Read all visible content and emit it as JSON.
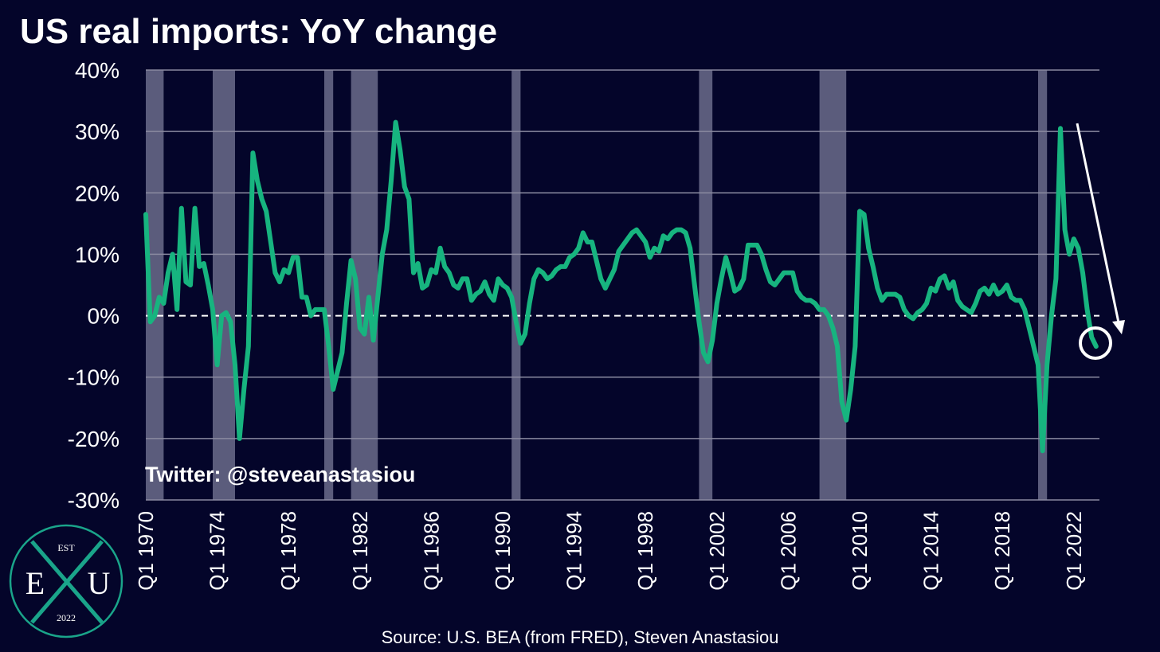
{
  "chart_data": {
    "type": "line",
    "title": "US real imports: YoY change",
    "source": "Source: U.S. BEA (from FRED), Steven Anastasiou",
    "watermark": "Twitter: @steveanastasiou",
    "logo": {
      "top": "EST",
      "left": "E",
      "right": "U",
      "bottom": "2022"
    },
    "color": "#17b47f",
    "band_color": "#5b5c7c",
    "categories": [
      "Q1 1970",
      null,
      null,
      null,
      null,
      null,
      null,
      null,
      null,
      null,
      null,
      null,
      null,
      null,
      null,
      null,
      "Q1 1974",
      null,
      null,
      null,
      null,
      null,
      null,
      null,
      null,
      null,
      null,
      null,
      null,
      null,
      null,
      null,
      "Q1 1978",
      null,
      null,
      null,
      null,
      null,
      null,
      null,
      null,
      null,
      null,
      null,
      null,
      null,
      null,
      null,
      "Q1 1982",
      null,
      null,
      null,
      null,
      null,
      null,
      null,
      null,
      null,
      null,
      null,
      null,
      null,
      null,
      null,
      "Q1 1986",
      null,
      null,
      null,
      null,
      null,
      null,
      null,
      null,
      null,
      null,
      null,
      null,
      null,
      null,
      null,
      "Q1 1990",
      null,
      null,
      null,
      null,
      null,
      null,
      null,
      null,
      null,
      null,
      null,
      null,
      null,
      null,
      null,
      "Q1 1994",
      null,
      null,
      null,
      null,
      null,
      null,
      null,
      null,
      null,
      null,
      null,
      null,
      null,
      null,
      null,
      "Q1 1998",
      null,
      null,
      null,
      null,
      null,
      null,
      null,
      null,
      null,
      null,
      null,
      null,
      null,
      null,
      null,
      "Q1 2002",
      null,
      null,
      null,
      null,
      null,
      null,
      null,
      null,
      null,
      null,
      null,
      null,
      null,
      null,
      null,
      "Q1 2006",
      null,
      null,
      null,
      null,
      null,
      null,
      null,
      null,
      null,
      null,
      null,
      null,
      null,
      null,
      null,
      "Q1 2010",
      null,
      null,
      null,
      null,
      null,
      null,
      null,
      null,
      null,
      null,
      null,
      null,
      null,
      null,
      null,
      "Q1 2014",
      null,
      null,
      null,
      null,
      null,
      null,
      null,
      null,
      null,
      null,
      null,
      null,
      null,
      null,
      null,
      "Q1 2018",
      null,
      null,
      null,
      null,
      null,
      null,
      null,
      null,
      null,
      null,
      null,
      null,
      null,
      null,
      null,
      "Q1 2022",
      null,
      null,
      null,
      null,
      null
    ],
    "values": [
      16.5,
      -1,
      0,
      3,
      2,
      7,
      10,
      1,
      17.5,
      5.5,
      5,
      17.5,
      8,
      8.5,
      5,
      1,
      -8,
      0,
      0.5,
      -1,
      -8,
      -20,
      -12,
      -5,
      26.5,
      22,
      19,
      17,
      12,
      7,
      5.5,
      7.5,
      7,
      9.5,
      9.5,
      3,
      3,
      0,
      1,
      1,
      1,
      -5,
      -12,
      -9,
      -6,
      2,
      9,
      6,
      -2,
      -3,
      3,
      -4,
      3,
      10,
      14,
      22,
      31.5,
      27,
      21,
      19,
      7,
      8.5,
      4.5,
      5,
      7.5,
      7,
      11,
      8,
      7,
      5,
      4.5,
      6,
      6,
      2.5,
      3.5,
      4,
      5.5,
      3.5,
      2.5,
      6,
      5,
      4.5,
      3,
      -1,
      -4.5,
      -3,
      2,
      6,
      7.5,
      7,
      6,
      6.5,
      7.5,
      8,
      8,
      9.5,
      10,
      11,
      13.5,
      12,
      12,
      9,
      6,
      4.5,
      6,
      7.5,
      10.5,
      11.5,
      12.5,
      13.5,
      14,
      13,
      12,
      9.5,
      11,
      10.5,
      13,
      12.5,
      13.5,
      14,
      14,
      13.5,
      11,
      5,
      -1,
      -6,
      -7.5,
      -4,
      2,
      6,
      9.5,
      7,
      4,
      4.5,
      6,
      11.5,
      11.5,
      11.5,
      10,
      7.5,
      5.5,
      5,
      6,
      7,
      7,
      7,
      4,
      3,
      2.5,
      2.5,
      2,
      1,
      1,
      0,
      -2,
      -5,
      -14,
      -17,
      -12,
      -5,
      17,
      16.5,
      11,
      8,
      4.5,
      2.5,
      3.5,
      3.5,
      3.5,
      3,
      1,
      0,
      -0.5,
      0.5,
      1,
      2,
      4.5,
      4,
      6,
      6.5,
      4.5,
      5.5,
      2.5,
      1.5,
      1,
      0.5,
      2,
      4,
      4.5,
      3.5,
      5,
      3.5,
      4,
      5,
      3,
      2.5,
      2.5,
      1,
      -2,
      -5,
      -8,
      -22,
      -8,
      0,
      6,
      30.5,
      14,
      10,
      12.5,
      11,
      7,
      1,
      -3.5,
      -5
    ],
    "shaded_periods": [
      [
        0,
        4
      ],
      [
        15,
        20
      ],
      [
        40,
        42
      ],
      [
        46,
        52
      ],
      [
        82,
        84
      ],
      [
        124,
        127
      ],
      [
        151,
        157
      ],
      [
        200,
        202
      ]
    ],
    "ylim": [
      -30,
      40
    ],
    "yticks": [
      {
        "value": 40,
        "label": "40%"
      },
      {
        "value": 30,
        "label": "30%"
      },
      {
        "value": 20,
        "label": "20%"
      },
      {
        "value": 10,
        "label": "10%"
      },
      {
        "value": 0,
        "label": "0%"
      },
      {
        "value": -10,
        "label": "-10%"
      },
      {
        "value": -20,
        "label": "-20%"
      },
      {
        "value": -30,
        "label": "-30%"
      }
    ],
    "grid": true
  }
}
